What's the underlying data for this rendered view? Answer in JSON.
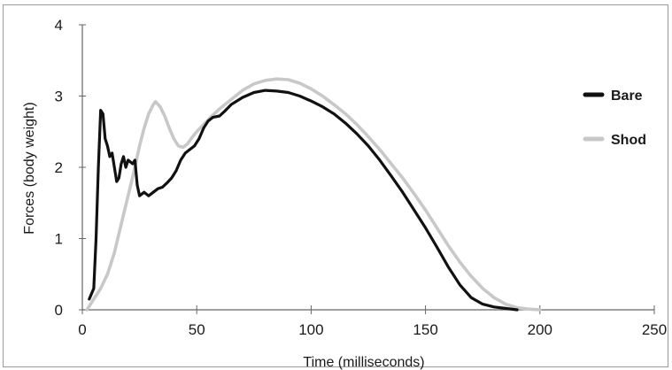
{
  "chart_data": {
    "type": "line",
    "title": "",
    "xlabel": "Time (milliseconds)",
    "ylabel": "Forces (body weight)",
    "xlim": [
      0,
      250
    ],
    "ylim": [
      0,
      4
    ],
    "xticks": [
      0,
      50,
      100,
      150,
      200,
      250
    ],
    "yticks": [
      0,
      1,
      2,
      3,
      4
    ],
    "grid": false,
    "legend_position": "right",
    "series": [
      {
        "name": "Bare",
        "color": "#111111",
        "points": [
          [
            3,
            0.15
          ],
          [
            5,
            0.3
          ],
          [
            6,
            1.0
          ],
          [
            7,
            2.0
          ],
          [
            8,
            2.8
          ],
          [
            9,
            2.75
          ],
          [
            10,
            2.4
          ],
          [
            11,
            2.3
          ],
          [
            12,
            2.15
          ],
          [
            13,
            2.2
          ],
          [
            14,
            2.0
          ],
          [
            15,
            1.8
          ],
          [
            16,
            1.85
          ],
          [
            17,
            2.05
          ],
          [
            18,
            2.15
          ],
          [
            19,
            2.0
          ],
          [
            20,
            2.1
          ],
          [
            22,
            2.05
          ],
          [
            23,
            2.1
          ],
          [
            24,
            1.75
          ],
          [
            25,
            1.6
          ],
          [
            27,
            1.65
          ],
          [
            29,
            1.6
          ],
          [
            31,
            1.65
          ],
          [
            33,
            1.7
          ],
          [
            35,
            1.72
          ],
          [
            37,
            1.78
          ],
          [
            39,
            1.85
          ],
          [
            41,
            1.95
          ],
          [
            43,
            2.1
          ],
          [
            45,
            2.2
          ],
          [
            47,
            2.25
          ],
          [
            49,
            2.3
          ],
          [
            51,
            2.4
          ],
          [
            53,
            2.55
          ],
          [
            55,
            2.65
          ],
          [
            57,
            2.7
          ],
          [
            60,
            2.72
          ],
          [
            62,
            2.78
          ],
          [
            65,
            2.88
          ],
          [
            70,
            2.98
          ],
          [
            75,
            3.05
          ],
          [
            80,
            3.08
          ],
          [
            85,
            3.07
          ],
          [
            90,
            3.05
          ],
          [
            95,
            3.0
          ],
          [
            100,
            2.93
          ],
          [
            105,
            2.85
          ],
          [
            110,
            2.75
          ],
          [
            115,
            2.62
          ],
          [
            120,
            2.47
          ],
          [
            125,
            2.3
          ],
          [
            130,
            2.1
          ],
          [
            135,
            1.88
          ],
          [
            140,
            1.65
          ],
          [
            145,
            1.4
          ],
          [
            150,
            1.15
          ],
          [
            155,
            0.88
          ],
          [
            160,
            0.6
          ],
          [
            165,
            0.35
          ],
          [
            170,
            0.17
          ],
          [
            175,
            0.08
          ],
          [
            180,
            0.04
          ],
          [
            185,
            0.02
          ],
          [
            190,
            0.0
          ]
        ]
      },
      {
        "name": "Shod",
        "color": "#c8c8c8",
        "points": [
          [
            2,
            0.0
          ],
          [
            5,
            0.15
          ],
          [
            8,
            0.3
          ],
          [
            11,
            0.5
          ],
          [
            14,
            0.8
          ],
          [
            17,
            1.2
          ],
          [
            20,
            1.6
          ],
          [
            23,
            2.0
          ],
          [
            25,
            2.3
          ],
          [
            27,
            2.55
          ],
          [
            29,
            2.75
          ],
          [
            31,
            2.88
          ],
          [
            32,
            2.92
          ],
          [
            34,
            2.85
          ],
          [
            36,
            2.72
          ],
          [
            38,
            2.55
          ],
          [
            40,
            2.4
          ],
          [
            42,
            2.3
          ],
          [
            44,
            2.28
          ],
          [
            46,
            2.33
          ],
          [
            48,
            2.42
          ],
          [
            50,
            2.5
          ],
          [
            53,
            2.6
          ],
          [
            56,
            2.7
          ],
          [
            60,
            2.82
          ],
          [
            65,
            2.95
          ],
          [
            70,
            3.08
          ],
          [
            75,
            3.17
          ],
          [
            80,
            3.22
          ],
          [
            85,
            3.24
          ],
          [
            90,
            3.23
          ],
          [
            95,
            3.18
          ],
          [
            100,
            3.1
          ],
          [
            105,
            3.0
          ],
          [
            110,
            2.88
          ],
          [
            115,
            2.75
          ],
          [
            120,
            2.6
          ],
          [
            125,
            2.43
          ],
          [
            130,
            2.25
          ],
          [
            135,
            2.05
          ],
          [
            140,
            1.85
          ],
          [
            145,
            1.63
          ],
          [
            150,
            1.4
          ],
          [
            155,
            1.15
          ],
          [
            160,
            0.9
          ],
          [
            165,
            0.67
          ],
          [
            170,
            0.47
          ],
          [
            175,
            0.3
          ],
          [
            180,
            0.17
          ],
          [
            185,
            0.08
          ],
          [
            190,
            0.03
          ],
          [
            195,
            0.01
          ],
          [
            200,
            0.0
          ]
        ]
      }
    ]
  }
}
